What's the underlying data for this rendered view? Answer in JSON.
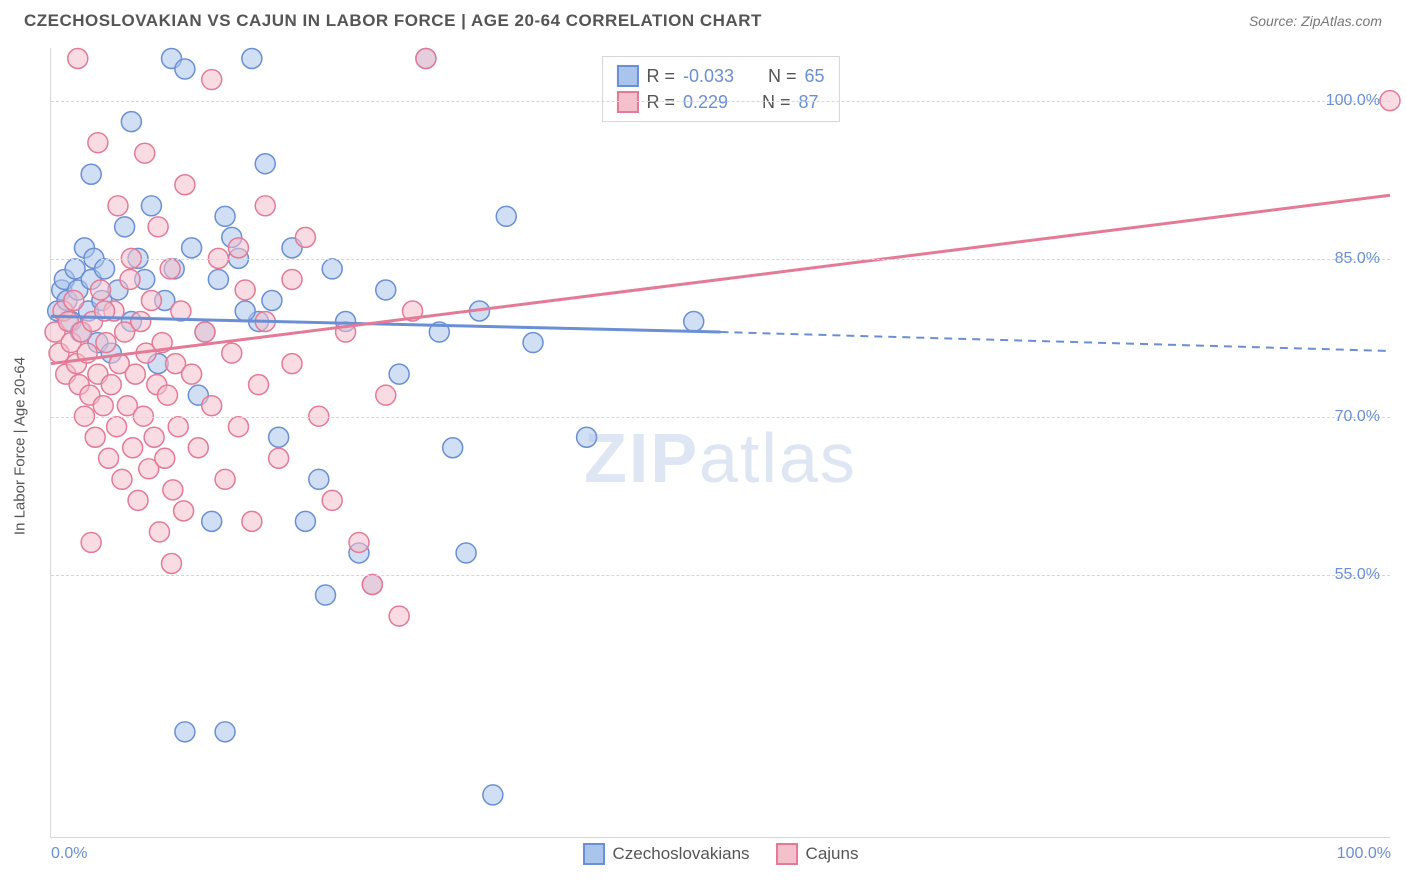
{
  "chart": {
    "type": "scatter",
    "title": "CZECHOSLOVAKIAN VS CAJUN IN LABOR FORCE | AGE 20-64 CORRELATION CHART",
    "source_label": "Source: ZipAtlas.com",
    "y_axis_title": "In Labor Force | Age 20-64",
    "watermark_text": "ZIPatlas",
    "title_fontsize": 17,
    "label_fontsize": 15,
    "tick_fontsize": 16,
    "tick_color": "#6a8fd4",
    "background_color": "#ffffff",
    "grid_color": "#d6d6d6",
    "marker_radius": 10,
    "marker_opacity": 0.55,
    "line_width": 3,
    "xlim": [
      0,
      100
    ],
    "ylim": [
      30,
      105
    ],
    "x_ticks": [
      {
        "value": 0,
        "label": "0.0%"
      },
      {
        "value": 100,
        "label": "100.0%"
      }
    ],
    "y_ticks": [
      {
        "value": 55,
        "label": "55.0%"
      },
      {
        "value": 70,
        "label": "70.0%"
      },
      {
        "value": 85,
        "label": "85.0%"
      },
      {
        "value": 100,
        "label": "100.0%"
      }
    ],
    "series": [
      {
        "name": "Czechoslovakians",
        "color_fill": "#a9c5eb",
        "color_stroke": "#6a8fd4",
        "r_label": "R =",
        "r_value": "-0.033",
        "n_label": "N =",
        "n_value": "65",
        "trend": {
          "solid": {
            "x1": 0,
            "y1": 79.5,
            "x2": 50,
            "y2": 78.0
          },
          "dashed": {
            "x1": 50,
            "y1": 78.0,
            "x2": 100,
            "y2": 76.2
          }
        },
        "points": [
          [
            0.5,
            80
          ],
          [
            0.8,
            82
          ],
          [
            1.0,
            83
          ],
          [
            1.2,
            81
          ],
          [
            1.5,
            79
          ],
          [
            1.8,
            84
          ],
          [
            2.0,
            82
          ],
          [
            2.2,
            78
          ],
          [
            2.5,
            86
          ],
          [
            2.8,
            80
          ],
          [
            3.0,
            83
          ],
          [
            3.2,
            85
          ],
          [
            3.5,
            77
          ],
          [
            3.8,
            81
          ],
          [
            4.0,
            84
          ],
          [
            4.5,
            76
          ],
          [
            5.0,
            82
          ],
          [
            5.5,
            88
          ],
          [
            6.0,
            79
          ],
          [
            6.5,
            85
          ],
          [
            7.0,
            83
          ],
          [
            7.5,
            90
          ],
          [
            8.0,
            75
          ],
          [
            8.5,
            81
          ],
          [
            9.0,
            104
          ],
          [
            9.2,
            84
          ],
          [
            10.0,
            103
          ],
          [
            10.5,
            86
          ],
          [
            11.0,
            72
          ],
          [
            11.5,
            78
          ],
          [
            12.0,
            60
          ],
          [
            12.5,
            83
          ],
          [
            13.0,
            89
          ],
          [
            14.0,
            85
          ],
          [
            15.0,
            104
          ],
          [
            15.5,
            79
          ],
          [
            16.0,
            94
          ],
          [
            16.5,
            81
          ],
          [
            17.0,
            68
          ],
          [
            18.0,
            86
          ],
          [
            19.0,
            60
          ],
          [
            20.0,
            64
          ],
          [
            20.5,
            53
          ],
          [
            21.0,
            84
          ],
          [
            22.0,
            79
          ],
          [
            23.0,
            57
          ],
          [
            24.0,
            54
          ],
          [
            25.0,
            82
          ],
          [
            26.0,
            74
          ],
          [
            28.0,
            104
          ],
          [
            29.0,
            78
          ],
          [
            30.0,
            67
          ],
          [
            31.0,
            57
          ],
          [
            32.0,
            80
          ],
          [
            33.0,
            34
          ],
          [
            34.0,
            89
          ],
          [
            36.0,
            77
          ],
          [
            40.0,
            68
          ],
          [
            48.0,
            79
          ],
          [
            10.0,
            40
          ],
          [
            13.0,
            40
          ],
          [
            13.5,
            87
          ],
          [
            14.5,
            80
          ],
          [
            3.0,
            93
          ],
          [
            6.0,
            98
          ]
        ]
      },
      {
        "name": "Cajuns",
        "color_fill": "#f4c0cc",
        "color_stroke": "#e47a96",
        "r_label": "R =",
        "r_value": "0.229",
        "n_label": "N =",
        "n_value": "87",
        "trend": {
          "solid": {
            "x1": 0,
            "y1": 75.0,
            "x2": 100,
            "y2": 91.0
          },
          "dashed": null
        },
        "points": [
          [
            0.3,
            78
          ],
          [
            0.6,
            76
          ],
          [
            0.9,
            80
          ],
          [
            1.1,
            74
          ],
          [
            1.3,
            79
          ],
          [
            1.5,
            77
          ],
          [
            1.7,
            81
          ],
          [
            1.9,
            75
          ],
          [
            2.1,
            73
          ],
          [
            2.3,
            78
          ],
          [
            2.5,
            70
          ],
          [
            2.7,
            76
          ],
          [
            2.9,
            72
          ],
          [
            3.1,
            79
          ],
          [
            3.3,
            68
          ],
          [
            3.5,
            74
          ],
          [
            3.7,
            82
          ],
          [
            3.9,
            71
          ],
          [
            4.1,
            77
          ],
          [
            4.3,
            66
          ],
          [
            4.5,
            73
          ],
          [
            4.7,
            80
          ],
          [
            4.9,
            69
          ],
          [
            5.1,
            75
          ],
          [
            5.3,
            64
          ],
          [
            5.5,
            78
          ],
          [
            5.7,
            71
          ],
          [
            5.9,
            83
          ],
          [
            6.1,
            67
          ],
          [
            6.3,
            74
          ],
          [
            6.5,
            62
          ],
          [
            6.7,
            79
          ],
          [
            6.9,
            70
          ],
          [
            7.1,
            76
          ],
          [
            7.3,
            65
          ],
          [
            7.5,
            81
          ],
          [
            7.7,
            68
          ],
          [
            7.9,
            73
          ],
          [
            8.1,
            59
          ],
          [
            8.3,
            77
          ],
          [
            8.5,
            66
          ],
          [
            8.7,
            72
          ],
          [
            8.9,
            84
          ],
          [
            9.1,
            63
          ],
          [
            9.3,
            75
          ],
          [
            9.5,
            69
          ],
          [
            9.7,
            80
          ],
          [
            9.9,
            61
          ],
          [
            10.5,
            74
          ],
          [
            11.0,
            67
          ],
          [
            11.5,
            78
          ],
          [
            12.0,
            71
          ],
          [
            12.5,
            85
          ],
          [
            13.0,
            64
          ],
          [
            13.5,
            76
          ],
          [
            14.0,
            69
          ],
          [
            14.5,
            82
          ],
          [
            15.0,
            60
          ],
          [
            15.5,
            73
          ],
          [
            16.0,
            79
          ],
          [
            17.0,
            66
          ],
          [
            18.0,
            75
          ],
          [
            19.0,
            87
          ],
          [
            20.0,
            70
          ],
          [
            21.0,
            62
          ],
          [
            22.0,
            78
          ],
          [
            23.0,
            58
          ],
          [
            24.0,
            54
          ],
          [
            25.0,
            72
          ],
          [
            26.0,
            51
          ],
          [
            27.0,
            80
          ],
          [
            28.0,
            104
          ],
          [
            2.0,
            104
          ],
          [
            3.0,
            58
          ],
          [
            4.0,
            80
          ],
          [
            5.0,
            90
          ],
          [
            6.0,
            85
          ],
          [
            7.0,
            95
          ],
          [
            8.0,
            88
          ],
          [
            10.0,
            92
          ],
          [
            12.0,
            102
          ],
          [
            14.0,
            86
          ],
          [
            16.0,
            90
          ],
          [
            18.0,
            83
          ],
          [
            3.5,
            96
          ],
          [
            100.0,
            100
          ],
          [
            9.0,
            56
          ]
        ]
      }
    ]
  }
}
